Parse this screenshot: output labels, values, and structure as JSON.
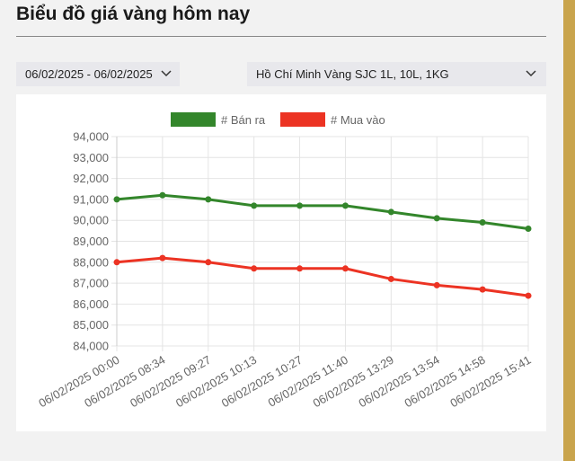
{
  "header": {
    "title": "Biểu đồ giá vàng hôm nay"
  },
  "filters": {
    "date_range": "06/02/2025 - 06/02/2025",
    "product": "Hồ Chí Minh Vàng SJC 1L, 10L, 1KG"
  },
  "chart_data": {
    "type": "line",
    "categories": [
      "06/02/2025 00:00",
      "06/02/2025 08:34",
      "06/02/2025 09:27",
      "06/02/2025 10:13",
      "06/02/2025 10:27",
      "06/02/2025 11:40",
      "06/02/2025 13:29",
      "06/02/2025 13:54",
      "06/02/2025 14:58",
      "06/02/2025 15:41"
    ],
    "series": [
      {
        "name": "# Bán ra",
        "color": "#33862b",
        "values": [
          91000,
          91200,
          91000,
          90700,
          90700,
          90700,
          90400,
          90100,
          89900,
          89600
        ]
      },
      {
        "name": "# Mua vào",
        "color": "#ec3323",
        "values": [
          88000,
          88200,
          88000,
          87700,
          87700,
          87700,
          87200,
          86900,
          86700,
          86400
        ]
      }
    ],
    "ylim": [
      84000,
      94000
    ],
    "yticks": [
      {
        "value": 84000,
        "label": "84,000"
      },
      {
        "value": 85000,
        "label": "85,000"
      },
      {
        "value": 86000,
        "label": "86,000"
      },
      {
        "value": 87000,
        "label": "87,000"
      },
      {
        "value": 88000,
        "label": "88,000"
      },
      {
        "value": 89000,
        "label": "89,000"
      },
      {
        "value": 90000,
        "label": "90,000"
      },
      {
        "value": 91000,
        "label": "91,000"
      },
      {
        "value": 92000,
        "label": "92,000"
      },
      {
        "value": 93000,
        "label": "93,000"
      },
      {
        "value": 94000,
        "label": "94,000"
      }
    ],
    "grid": true,
    "legend": "top"
  }
}
